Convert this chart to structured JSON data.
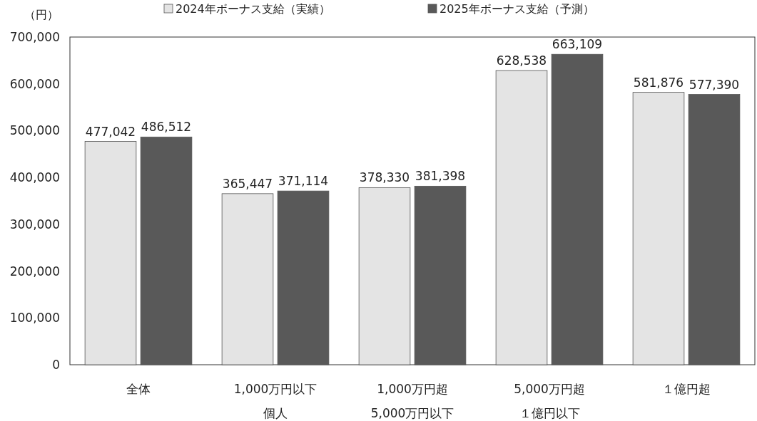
{
  "chart_data": {
    "type": "bar",
    "ylabel": "（円）",
    "categories": [
      "全体",
      "1,000万円以下個人",
      "1,000万円超5,000万円以下",
      "5,000万円超１億円以下",
      "１億円超"
    ],
    "series": [
      {
        "name": "2024年ボーナス支給（実績）",
        "color": "#e4e4e4",
        "values": [
          477042,
          365447,
          378330,
          628538,
          581876
        ],
        "value_labels": [
          "477,042",
          "365,447",
          "378,330",
          "628,538",
          "581,876"
        ]
      },
      {
        "name": "2025年ボーナス支給（予測）",
        "color": "#595959",
        "values": [
          486512,
          371114,
          381398,
          663109,
          577390
        ],
        "value_labels": [
          "486,512",
          "371,114",
          "381,398",
          "663,109",
          "577,390"
        ]
      }
    ],
    "ylim": [
      0,
      700000
    ],
    "yticks": [
      {
        "value": 0,
        "label": "0"
      },
      {
        "value": 100000,
        "label": "100,000"
      },
      {
        "value": 200000,
        "label": "200,000"
      },
      {
        "value": 300000,
        "label": "300,000"
      },
      {
        "value": 400000,
        "label": "400,000"
      },
      {
        "value": 500000,
        "label": "500,000"
      },
      {
        "value": 600000,
        "label": "600,000"
      },
      {
        "value": 700000,
        "label": "700,000"
      }
    ],
    "legend": "top",
    "grid": false
  }
}
